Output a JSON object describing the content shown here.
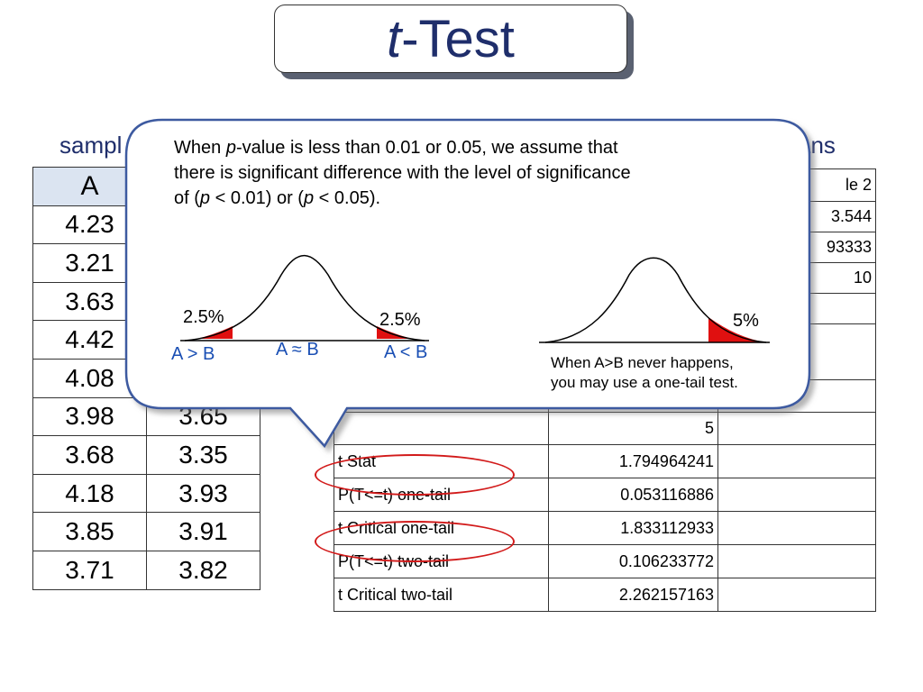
{
  "title": {
    "italic_part": "t",
    "rest": "-Test"
  },
  "headings": {
    "left_partial": "sampl",
    "right_partial": "ans"
  },
  "samples_table": {
    "header_left": "A",
    "rows": [
      [
        "4.23",
        ""
      ],
      [
        "3.21",
        ""
      ],
      [
        "3.63",
        ""
      ],
      [
        "4.42",
        ""
      ],
      [
        "4.08",
        ""
      ],
      [
        "3.98",
        "3.65"
      ],
      [
        "3.68",
        "3.35"
      ],
      [
        "4.18",
        "3.93"
      ],
      [
        "3.85",
        "3.91"
      ],
      [
        "3.71",
        "3.82"
      ]
    ]
  },
  "stats_table": {
    "rows": [
      [
        "",
        "",
        "le 2"
      ],
      [
        "",
        "",
        "3.544"
      ],
      [
        "",
        "",
        "93333"
      ],
      [
        "",
        "",
        "10"
      ],
      [
        "",
        "",
        ""
      ],
      [
        "",
        "",
        ""
      ],
      [
        "",
        "",
        ""
      ],
      [
        "",
        "5",
        ""
      ],
      [
        "t Stat",
        "1.794964241",
        ""
      ],
      [
        "P(T<=t) one-tail",
        "0.053116886",
        ""
      ],
      [
        "t Critical one-tail",
        "1.833112933",
        ""
      ],
      [
        "P(T<=t) two-tail",
        "0.106233772",
        ""
      ],
      [
        "t Critical two-tail",
        "2.262157163",
        ""
      ]
    ]
  },
  "callout": {
    "line1_a": "When ",
    "line1_p": "p",
    "line1_b": "-value is less than 0.01 or 0.05, we assume that",
    "line2": "there is significant difference with the level of significance",
    "line3_a": "of (",
    "line3_p1": "p",
    "line3_b": " < 0.01) or (",
    "line3_p2": "p",
    "line3_c": " < 0.05).",
    "two_tail": {
      "left_pct": "2.5%",
      "right_pct": "2.5%",
      "label_left": "A > B",
      "label_mid": "A ≈ B",
      "label_right": "A < B"
    },
    "one_tail": {
      "pct": "5%",
      "note_line1": "When A>B never happens,",
      "note_line2": "you may use a one-tail test."
    }
  },
  "colors": {
    "title_text": "#1f2e6b",
    "table_header_fill": "#dbe4f1",
    "highlight_red": "#d21a1a",
    "label_blue": "#1a4fb4",
    "callout_border": "#3c5aa0"
  }
}
